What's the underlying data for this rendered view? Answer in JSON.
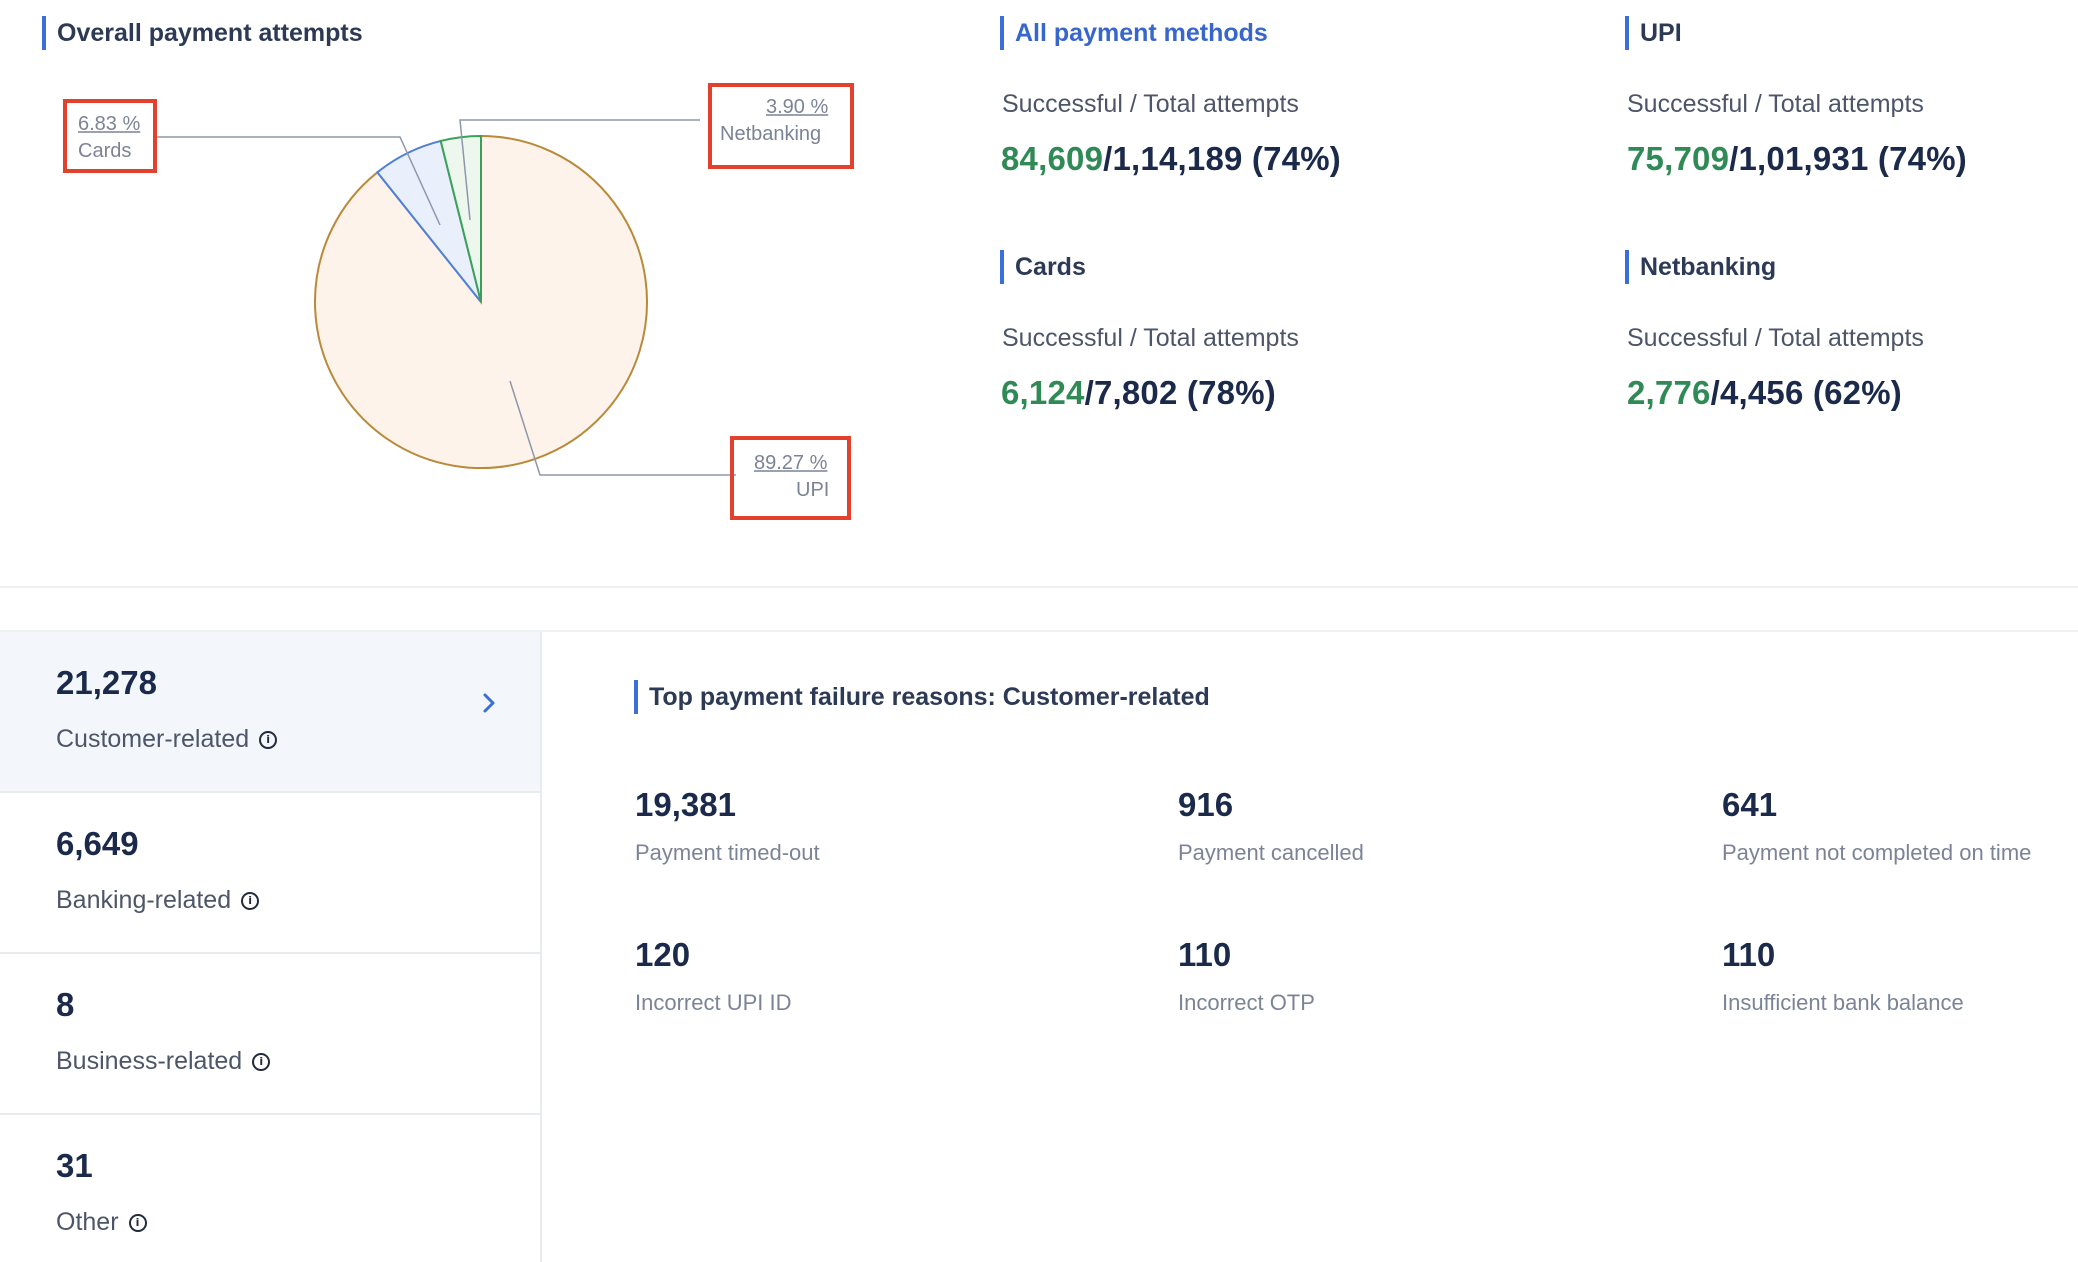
{
  "overall": {
    "title": "Overall payment attempts",
    "chart_data": {
      "type": "pie",
      "slices": [
        {
          "label": "UPI",
          "percent": "89.27 %",
          "value": 89.27,
          "fill": "#fdf3ea",
          "stroke": "#b98a3a"
        },
        {
          "label": "Cards",
          "percent": "6.83 %",
          "value": 6.83,
          "fill": "#e9effb",
          "stroke": "#4f7fd8"
        },
        {
          "label": "Netbanking",
          "percent": "3.90 %",
          "value": 3.9,
          "fill": "#eef7ee",
          "stroke": "#3aa15b"
        }
      ]
    }
  },
  "methods": {
    "all": {
      "title": "All payment methods",
      "sub": "Successful / Total attempts",
      "success": "84,609",
      "rest": "/1,14,189 (74%)"
    },
    "upi": {
      "title": "UPI",
      "sub": "Successful / Total attempts",
      "success": "75,709",
      "rest": "/1,01,931 (74%)"
    },
    "cards": {
      "title": "Cards",
      "sub": "Successful / Total attempts",
      "success": "6,124",
      "rest": "/7,802 (78%)"
    },
    "netbanking": {
      "title": "Netbanking",
      "sub": "Successful / Total attempts",
      "success": "2,776",
      "rest": "/4,456 (62%)"
    }
  },
  "categories": [
    {
      "count": "21,278",
      "label": "Customer-related"
    },
    {
      "count": "6,649",
      "label": "Banking-related"
    },
    {
      "count": "8",
      "label": "Business-related"
    },
    {
      "count": "31",
      "label": "Other"
    }
  ],
  "failures": {
    "title": "Top payment failure reasons: Customer-related",
    "items": [
      {
        "count": "19,381",
        "label": "Payment timed-out"
      },
      {
        "count": "916",
        "label": "Payment cancelled"
      },
      {
        "count": "641",
        "label": "Payment not completed on time"
      },
      {
        "count": "120",
        "label": "Incorrect UPI ID"
      },
      {
        "count": "110",
        "label": "Incorrect OTP"
      },
      {
        "count": "110",
        "label": "Insufficient bank balance"
      }
    ]
  }
}
